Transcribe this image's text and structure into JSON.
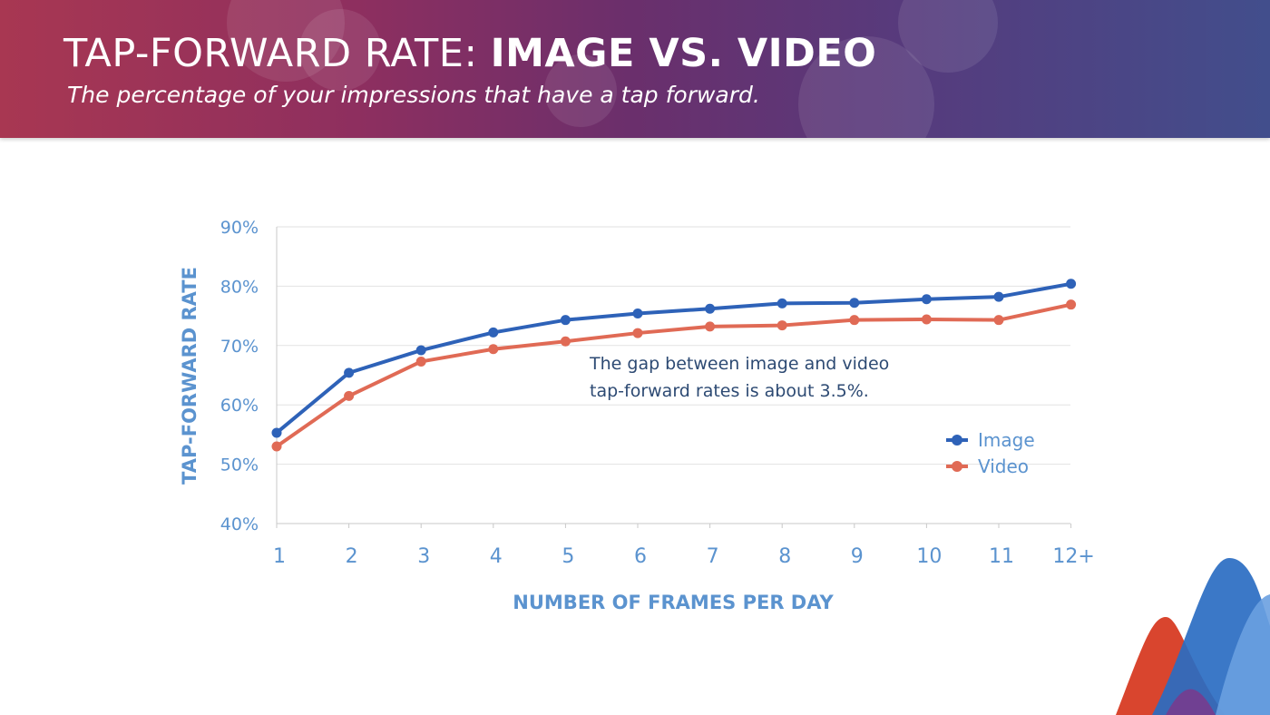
{
  "header": {
    "title_light": "TAP-FORWARD RATE: ",
    "title_bold": "IMAGE VS. VIDEO",
    "subtitle": "The percentage of your impressions that have a tap forward."
  },
  "chart_data": {
    "type": "line",
    "categories": [
      "1",
      "2",
      "3",
      "4",
      "5",
      "6",
      "7",
      "8",
      "9",
      "10",
      "11",
      "12+"
    ],
    "series": [
      {
        "name": "Image",
        "color": "#2e62b8",
        "values": [
          55.3,
          65.4,
          69.2,
          72.2,
          74.3,
          75.4,
          76.2,
          77.1,
          77.2,
          77.8,
          78.2,
          80.4
        ]
      },
      {
        "name": "Video",
        "color": "#e06a55",
        "values": [
          53.0,
          61.5,
          67.3,
          69.4,
          70.7,
          72.1,
          73.2,
          73.4,
          74.3,
          74.4,
          74.3,
          76.9
        ]
      }
    ],
    "ylim": [
      40,
      90
    ],
    "yticks": [
      "40%",
      "50%",
      "60%",
      "70%",
      "80%",
      "90%"
    ],
    "xlabel": "NUMBER OF FRAMES PER DAY",
    "ylabel": "TAP-FORWARD RATE",
    "annotation": [
      "The gap between image and video",
      "tap-forward rates is about 3.5%."
    ],
    "grid": true,
    "legend": "right"
  }
}
